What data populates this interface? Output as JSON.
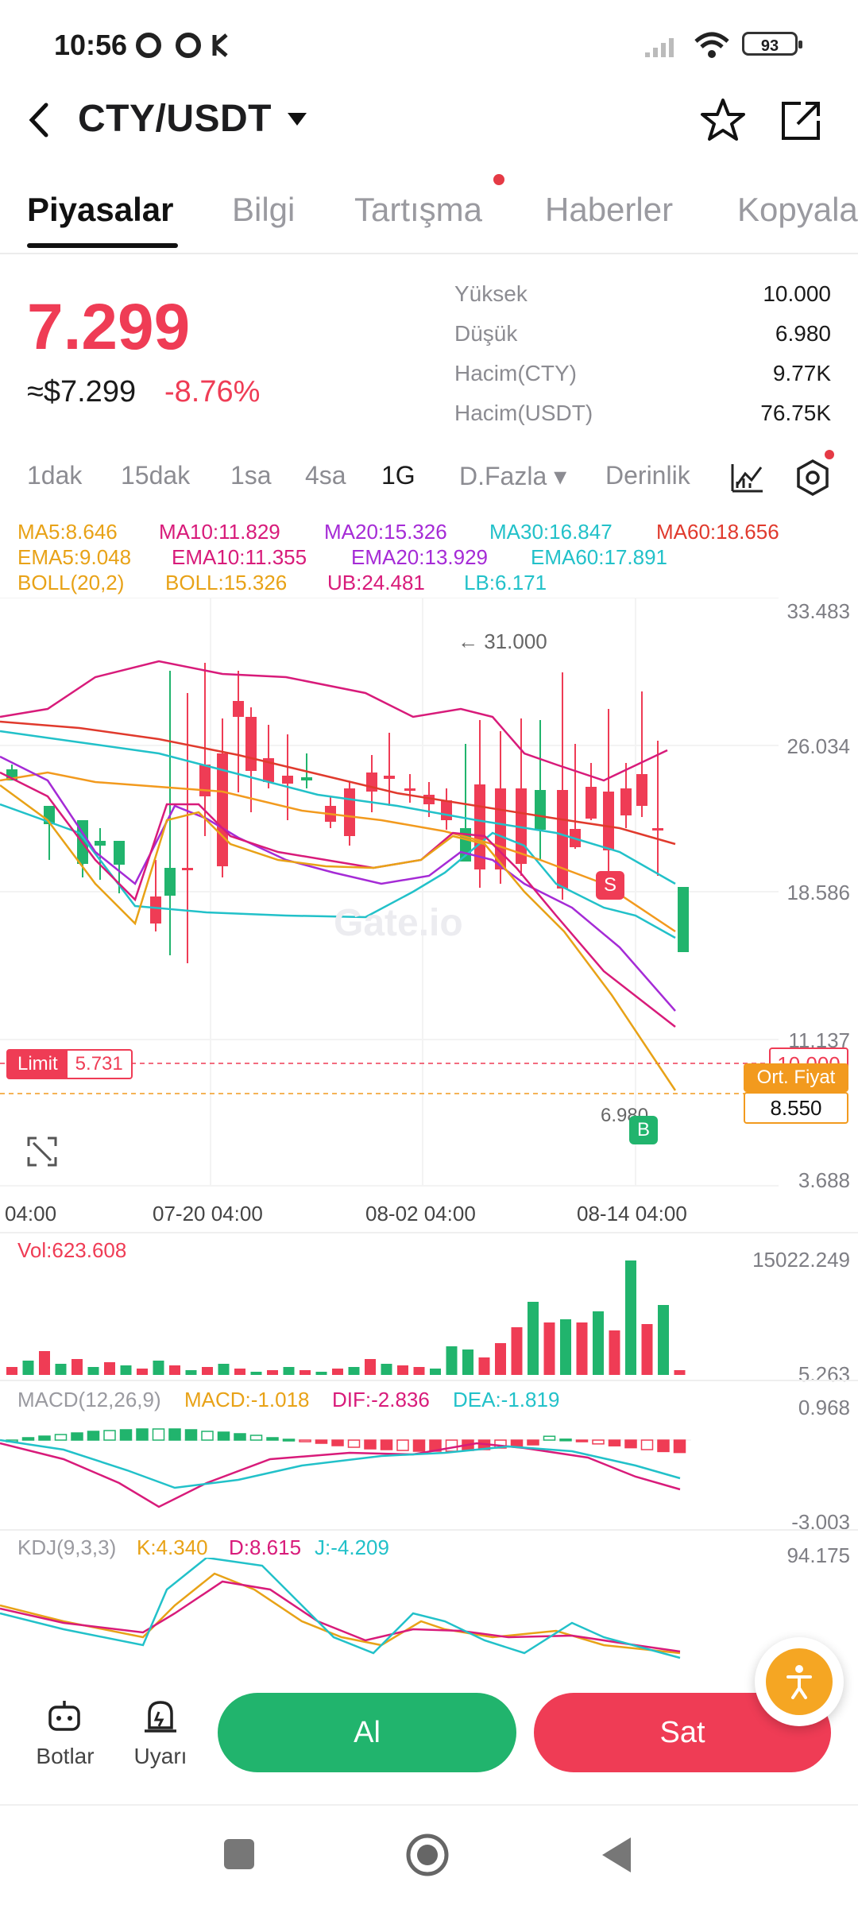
{
  "status_bar": {
    "time": "10:56",
    "battery": "93"
  },
  "header": {
    "pair": "CTY/USDT"
  },
  "tabs": [
    "Piyasalar",
    "Bilgi",
    "Tartışma",
    "Haberler",
    "Kopyala"
  ],
  "ticker": {
    "price": "7.299",
    "usd_price": "≈$7.299",
    "change": "-8.76%",
    "stats": [
      {
        "label": "Yüksek",
        "value": "10.000"
      },
      {
        "label": "Düşük",
        "value": "6.980"
      },
      {
        "label": "Hacim(CTY)",
        "value": "9.77K"
      },
      {
        "label": "Hacim(USDT)",
        "value": "76.75K"
      }
    ]
  },
  "intervals": [
    "1dak",
    "15dak",
    "1sa",
    "4sa",
    "1G",
    "D.Fazla ▾",
    "Derinlik"
  ],
  "indicators": {
    "ma": [
      "MA5:8.646",
      "MA10:11.829",
      "MA20:15.326",
      "MA30:16.847",
      "MA60:18.656"
    ],
    "ema": [
      "EMA5:9.048",
      "EMA10:11.355",
      "EMA20:13.929",
      "EMA60:17.891"
    ],
    "boll": [
      "BOLL(20,2)",
      "BOLL:15.326",
      "UB:24.481",
      "LB:6.171"
    ]
  },
  "chart": {
    "y_axis": [
      "33.483",
      "26.034",
      "18.586",
      "11.137",
      "3.688"
    ],
    "x_axis": [
      "04:00",
      "07-20 04:00",
      "08-02 04:00",
      "08-14 04:00"
    ],
    "high_marker": "← 31.000",
    "low_marker": "6.980",
    "limit_label": "Limit",
    "limit_value": "5.731",
    "tag_high": "10.000",
    "tag_avg": "Ort. Fiyat",
    "tag_avg_value": "8.550",
    "marker_s": "S",
    "marker_b": "B",
    "watermark": "Gate.io",
    "colors": {
      "up": "#21b46d",
      "down": "#ef3c55"
    }
  },
  "volume": {
    "label": "Vol:623.608",
    "max": "15022.249",
    "min": "5.263"
  },
  "macd": {
    "title": "MACD(12,26,9)",
    "macd": "MACD:-1.018",
    "dif": "DIF:-2.836",
    "dea": "DEA:-1.819",
    "max": "0.968",
    "min": "-3.003"
  },
  "kdj": {
    "title": "KDJ(9,3,3)",
    "k": "K:4.340",
    "d": "D:8.615",
    "j": "J:-4.209",
    "max": "94.175"
  },
  "bottom": {
    "bots": "Botlar",
    "alerts": "Uyarı",
    "buy": "Al",
    "sell": "Sat"
  }
}
